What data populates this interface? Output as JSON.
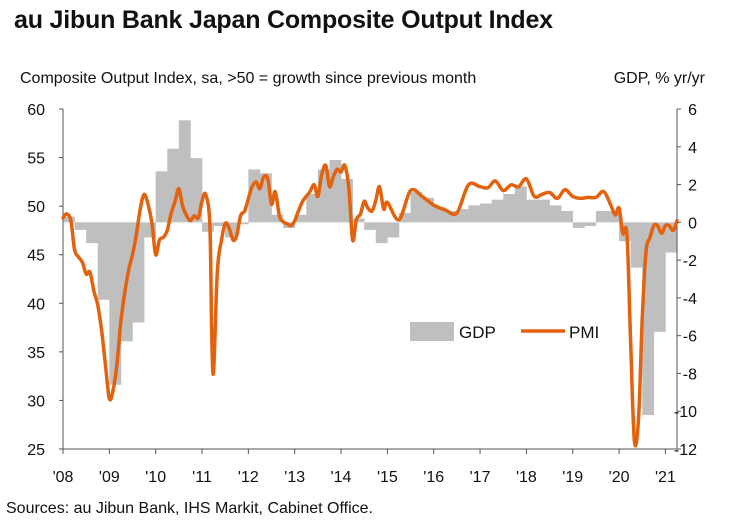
{
  "title": "au Jibun Bank Japan Composite Output Index",
  "chart_data": {
    "type": "bar+line",
    "left_axis_label": "Composite Output Index, sa, >50 = growth since previous month",
    "right_axis_label": "GDP, % yr/yr",
    "left_ylim": [
      25,
      60
    ],
    "left_ticks": [
      "60",
      "55",
      "50",
      "45",
      "40",
      "35",
      "30",
      "25"
    ],
    "right_ylim": [
      -12,
      6
    ],
    "right_ticks": [
      "6",
      "4",
      "2",
      "0",
      "-2",
      "-4",
      "-6",
      "-8",
      "-10",
      "-12"
    ],
    "x_ticks": [
      "'08",
      "'09",
      "'10",
      "'11",
      "'12",
      "'13",
      "'14",
      "'15",
      "'16",
      "'17",
      "'18",
      "'19",
      "'20",
      "'21"
    ],
    "x_range": [
      2008.0,
      2021.25
    ],
    "legend": [
      "GDP",
      "PMI"
    ],
    "colors": {
      "gdp": "#bfbfbf",
      "pmi": "#e3620d",
      "axis": "#555555"
    },
    "gdp_series": {
      "name": "GDP",
      "quarter_start": [
        2008.0,
        2008.25,
        2008.5,
        2008.75,
        2009.0,
        2009.25,
        2009.5,
        2009.75,
        2010.0,
        2010.25,
        2010.5,
        2010.75,
        2011.0,
        2011.25,
        2011.5,
        2011.75,
        2012.0,
        2012.25,
        2012.5,
        2012.75,
        2013.0,
        2013.25,
        2013.5,
        2013.75,
        2014.0,
        2014.25,
        2014.5,
        2014.75,
        2015.0,
        2015.25,
        2015.5,
        2015.75,
        2016.0,
        2016.25,
        2016.5,
        2016.75,
        2017.0,
        2017.25,
        2017.5,
        2017.75,
        2018.0,
        2018.25,
        2018.5,
        2018.75,
        2019.0,
        2019.25,
        2019.5,
        2019.75,
        2020.0,
        2020.25,
        2020.5,
        2020.75
      ],
      "values": [
        0.3,
        -0.4,
        -1.1,
        -4.1,
        -8.6,
        -6.3,
        -5.3,
        -0.8,
        2.7,
        3.9,
        5.4,
        3.4,
        -0.5,
        -0.2,
        -0.8,
        -0.1,
        2.8,
        2.6,
        0.4,
        -0.3,
        0.4,
        1.5,
        2.8,
        3.3,
        2.3,
        0.2,
        -0.4,
        -1.1,
        -0.8,
        0.5,
        1.6,
        1.3,
        0.8,
        0.6,
        0.7,
        0.9,
        1.0,
        1.2,
        1.5,
        1.9,
        1.2,
        1.2,
        0.9,
        0.6,
        -0.3,
        -0.2,
        0.6,
        0.6,
        -1.0,
        -2.4,
        -10.2,
        -5.8
      ]
    },
    "gdp_tail": {
      "quarter_start": [
        2021.0
      ],
      "values": [
        -1.6
      ]
    },
    "pmi_series": {
      "name": "PMI",
      "x": [
        2008.0,
        2008.08,
        2008.17,
        2008.25,
        2008.33,
        2008.42,
        2008.5,
        2008.58,
        2008.67,
        2008.75,
        2008.83,
        2008.92,
        2009.0,
        2009.08,
        2009.17,
        2009.25,
        2009.33,
        2009.42,
        2009.5,
        2009.58,
        2009.67,
        2009.75,
        2009.83,
        2009.92,
        2010.0,
        2010.08,
        2010.17,
        2010.25,
        2010.33,
        2010.42,
        2010.5,
        2010.58,
        2010.67,
        2010.75,
        2010.83,
        2010.92,
        2011.0,
        2011.08,
        2011.17,
        2011.21,
        2011.25,
        2011.33,
        2011.42,
        2011.5,
        2011.58,
        2011.67,
        2011.75,
        2011.83,
        2011.92,
        2012.0,
        2012.08,
        2012.17,
        2012.25,
        2012.33,
        2012.42,
        2012.5,
        2012.58,
        2012.67,
        2012.75,
        2012.83,
        2012.92,
        2013.0,
        2013.08,
        2013.17,
        2013.25,
        2013.33,
        2013.42,
        2013.5,
        2013.58,
        2013.67,
        2013.75,
        2013.83,
        2013.92,
        2014.0,
        2014.08,
        2014.17,
        2014.25,
        2014.33,
        2014.42,
        2014.5,
        2014.58,
        2014.67,
        2014.75,
        2014.83,
        2014.92,
        2015.0,
        2015.25,
        2015.5,
        2015.75,
        2016.0,
        2016.25,
        2016.5,
        2016.75,
        2017.0,
        2017.17,
        2017.33,
        2017.5,
        2017.67,
        2017.83,
        2018.0,
        2018.17,
        2018.33,
        2018.5,
        2018.67,
        2018.83,
        2019.0,
        2019.17,
        2019.33,
        2019.5,
        2019.67,
        2019.83,
        2019.92,
        2020.0,
        2020.08,
        2020.17,
        2020.25,
        2020.33,
        2020.42,
        2020.5,
        2020.58,
        2020.67,
        2020.75,
        2020.83,
        2020.92,
        2021.0,
        2021.08,
        2021.17,
        2021.25
      ],
      "values": [
        48.8,
        49.2,
        48.5,
        45.5,
        44.8,
        44.2,
        43.0,
        43.2,
        41.2,
        39.8,
        37.3,
        33.5,
        30.2,
        31.0,
        34.0,
        38.2,
        41.0,
        43.5,
        45.0,
        47.0,
        49.8,
        51.2,
        50.3,
        48.2,
        45.0,
        46.5,
        46.8,
        47.5,
        49.2,
        50.5,
        51.8,
        50.0,
        49.0,
        48.5,
        49.0,
        48.8,
        50.5,
        51.2,
        48.0,
        36.5,
        33.0,
        43.2,
        46.5,
        48.2,
        47.8,
        46.5,
        47.0,
        49.0,
        49.5,
        50.8,
        52.0,
        52.5,
        51.8,
        53.0,
        52.8,
        50.2,
        51.5,
        49.0,
        48.4,
        48.2,
        48.0,
        48.5,
        49.5,
        50.5,
        51.0,
        51.5,
        52.2,
        51.0,
        53.2,
        54.2,
        52.0,
        53.0,
        53.8,
        53.5,
        54.2,
        51.8,
        46.5,
        48.6,
        49.2,
        50.5,
        49.8,
        49.5,
        50.6,
        52.0,
        49.7,
        50.4,
        48.6,
        51.6,
        51.0,
        50.1,
        49.6,
        49.3,
        52.2,
        52.0,
        51.9,
        52.6,
        51.6,
        52.2,
        52.0,
        52.8,
        51.0,
        51.2,
        51.4,
        50.8,
        51.7,
        51.0,
        50.8,
        50.9,
        50.9,
        51.5,
        50.0,
        49.1,
        49.8,
        47.2,
        47.0,
        35.8,
        25.8,
        28.1,
        38.4,
        45.3,
        46.8,
        48.0,
        48.0,
        47.2,
        48.0,
        48.0,
        47.5,
        48.5
      ]
    }
  },
  "source": "Sources: au Jibun Bank, IHS Markit, Cabinet Office."
}
